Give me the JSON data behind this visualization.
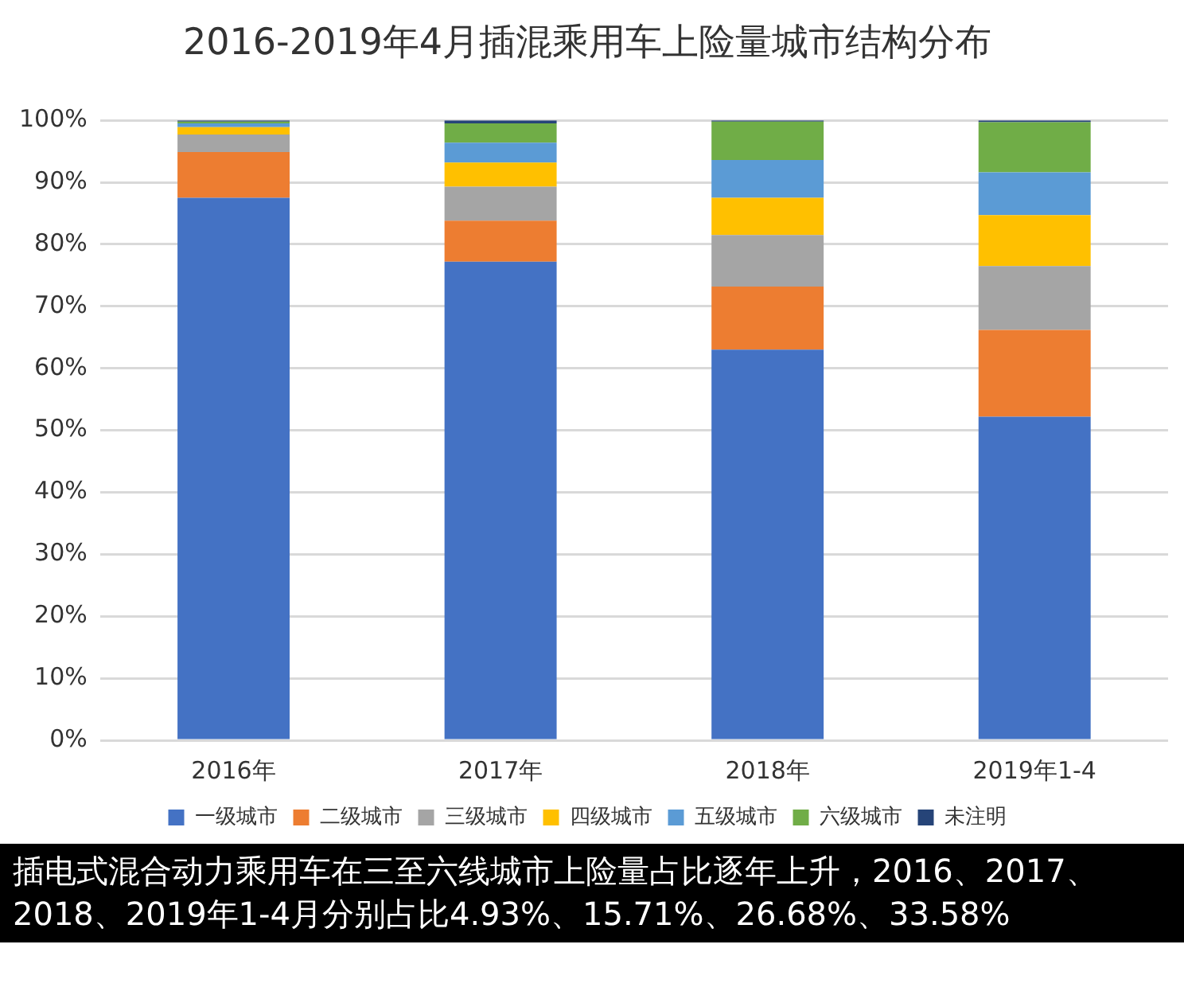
{
  "chart_data": {
    "type": "bar",
    "title": "2016-2019年4月插混乘用车上险量城市结构分布",
    "categories": [
      "2016年",
      "2017年",
      "2018年",
      "2019年1-4"
    ],
    "stacked": true,
    "series": [
      {
        "name": "一级城市",
        "color": "#4472c4",
        "values": [
          87.5,
          77.2,
          63.0,
          52.2
        ]
      },
      {
        "name": "二级城市",
        "color": "#ed7d31",
        "values": [
          7.4,
          6.6,
          10.2,
          14.0
        ]
      },
      {
        "name": "三级城市",
        "color": "#a5a5a5",
        "values": [
          2.8,
          5.5,
          8.3,
          10.3
        ]
      },
      {
        "name": "四级城市",
        "color": "#ffc000",
        "values": [
          1.2,
          3.9,
          6.0,
          8.2
        ]
      },
      {
        "name": "五级城市",
        "color": "#5b9bd5",
        "values": [
          0.6,
          3.2,
          6.1,
          6.9
        ]
      },
      {
        "name": "六级城市",
        "color": "#70ad47",
        "values": [
          0.3,
          3.1,
          6.2,
          8.1
        ]
      },
      {
        "name": "未注明",
        "color": "#264478",
        "values": [
          0.2,
          0.5,
          0.2,
          0.3
        ]
      }
    ],
    "ylim": [
      0,
      100
    ],
    "yticks": [
      {
        "value": 0,
        "label": "0%"
      },
      {
        "value": 10,
        "label": "10%"
      },
      {
        "value": 20,
        "label": "20%"
      },
      {
        "value": 30,
        "label": "30%"
      },
      {
        "value": 40,
        "label": "40%"
      },
      {
        "value": 50,
        "label": "50%"
      },
      {
        "value": 60,
        "label": "60%"
      },
      {
        "value": 70,
        "label": "70%"
      },
      {
        "value": 80,
        "label": "80%"
      },
      {
        "value": 90,
        "label": "90%"
      },
      {
        "value": 100,
        "label": "100%"
      }
    ],
    "grid": "y",
    "legend": "bottom",
    "annotations": [
      "插电式混合动力乘用车在三至六线城市上险量占比逐年上升，2016、2017、2018、2019年1-4月分别占比4.93%、15.71%、26.68%、33.58%"
    ]
  }
}
